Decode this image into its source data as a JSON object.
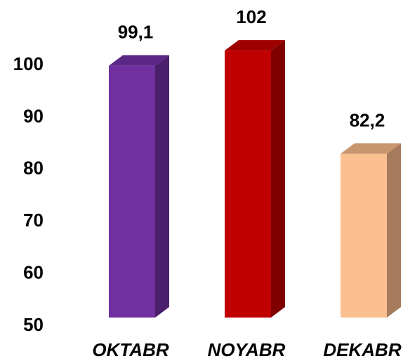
{
  "chart_data": {
    "type": "bar3d",
    "categories": [
      "OKTABR",
      "NOYABR",
      "DEKABR"
    ],
    "values": [
      99.1,
      102,
      82.2
    ],
    "value_labels": [
      "99,1",
      "102",
      "82,2"
    ],
    "colors": [
      "#7030a0",
      "#c00000",
      "#fac090"
    ],
    "side_colors": [
      "#4a1f6b",
      "#800000",
      "#a67c5c"
    ],
    "top_colors": [
      "#5a2786",
      "#9e0000",
      "#c8966e"
    ],
    "ylim": [
      50,
      110
    ],
    "yticks": [
      50,
      60,
      70,
      80,
      90,
      100
    ],
    "grid": false
  }
}
